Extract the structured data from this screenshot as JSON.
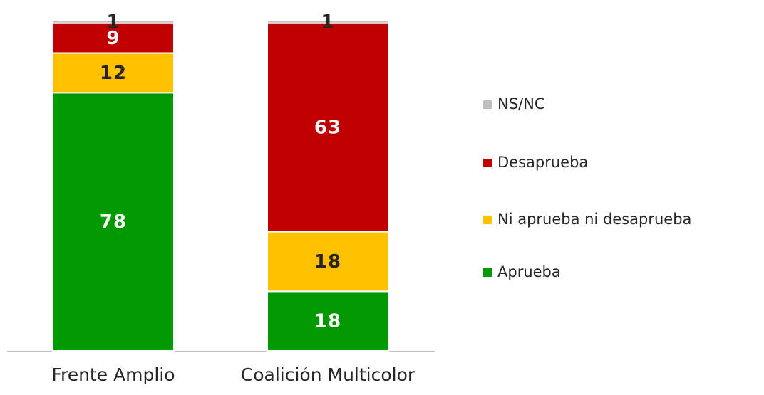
{
  "chart_data": {
    "type": "stacked_bar",
    "categories": [
      "Frente Amplio",
      "Coalición Multicolor"
    ],
    "series": [
      {
        "name": "Aprueba",
        "color": "#009900",
        "values": [
          78,
          18
        ]
      },
      {
        "name": "Ni aprueba ni desaprueba",
        "color": "#ffc000",
        "values": [
          12,
          18
        ]
      },
      {
        "name": "Desaprueba",
        "color": "#c00000",
        "values": [
          9,
          63
        ]
      },
      {
        "name": "NS/NC",
        "color": "#bfbfbf",
        "values": [
          1,
          1
        ]
      }
    ],
    "ylim": [
      0,
      100
    ],
    "legend": "right"
  }
}
